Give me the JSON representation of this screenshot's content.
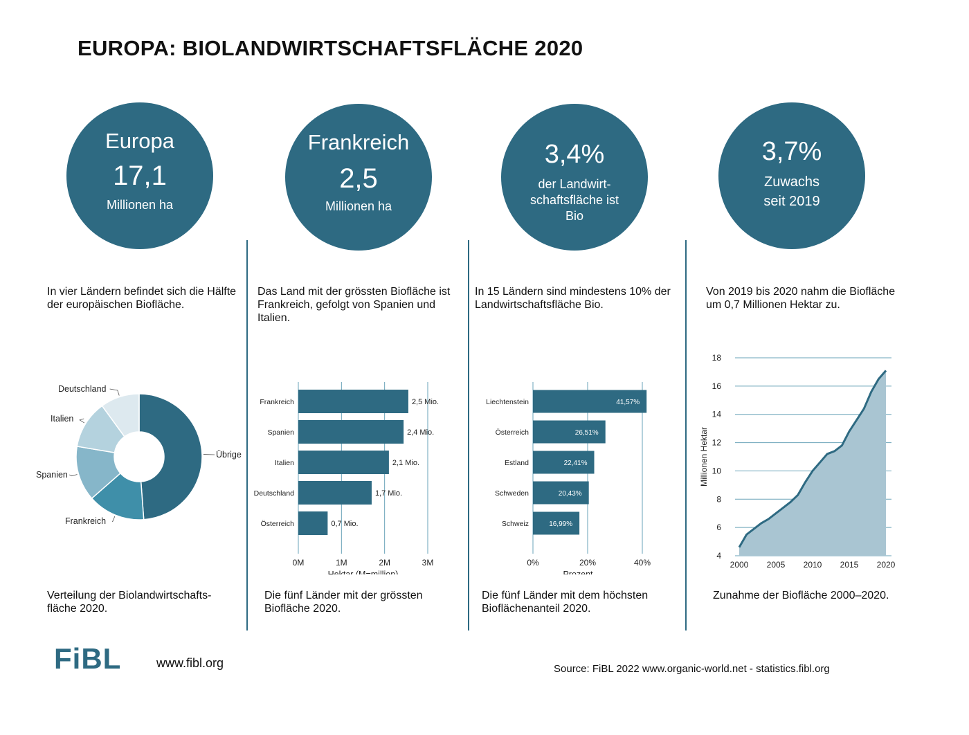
{
  "title": "EUROPA: BIOLANDWIRTSCHAFTSFLÄCHE 2020",
  "colors": {
    "primary": "#2e6a82",
    "mid": "#3f8fa9",
    "light1": "#86b6c9",
    "light2": "#b4d2de",
    "light3": "#dde9ef",
    "area": "#a9c5d2"
  },
  "circles": [
    {
      "line1": "Europa",
      "line2": "17,1",
      "line3": "Millionen ha"
    },
    {
      "line1": "Frankreich",
      "line2": "2,5",
      "line3": "Millionen ha"
    },
    {
      "line1": "3,4%",
      "line2": "der Landwirt-",
      "line3": "schaftsfläche ist",
      "line4": "Bio"
    },
    {
      "line1": "3,7%",
      "line2": "Zuwachs",
      "line3": "seit 2019"
    }
  ],
  "descriptions": [
    "In vier Ländern befindet sich die Hälfte der europäischen Biofläche.",
    "Das Land mit der grössten Biofläche ist Frankreich, gefolgt von Spanien und Italien.",
    "In 15 Ländern sind mindestens 10% der Landwirtschaftsfläche Bio.",
    "Von 2019 bis 2020 nahm die Biofläche um 0,7 Millionen Hektar zu."
  ],
  "captions": [
    "Verteilung der Biolandwirtschafts-fläche 2020.",
    "Die fünf Länder mit der grössten Biofläche 2020.",
    "Die fünf Länder mit dem höchsten Bioflächenanteil 2020.",
    "Zunahme der Biofläche 2000–2020."
  ],
  "footer": {
    "logo": "FiBL",
    "url": "www.fibl.org",
    "source": "Source: FiBL 2022 www.organic-world.net - statistics.fibl.org"
  },
  "chart_data": [
    {
      "type": "pie",
      "donut": true,
      "categories": [
        "Übrige",
        "Frankreich",
        "Spanien",
        "Italien",
        "Deutschland"
      ],
      "values": [
        8.3,
        2.5,
        2.4,
        2.1,
        1.7
      ],
      "colors": [
        "#2e6a82",
        "#3f8fa9",
        "#86b6c9",
        "#b4d2de",
        "#dde9ef"
      ]
    },
    {
      "type": "bar",
      "orientation": "horizontal",
      "categories": [
        "Frankreich",
        "Spanien",
        "Italien",
        "Deutschland",
        "Österreich"
      ],
      "values": [
        2.55,
        2.44,
        2.1,
        1.7,
        0.68
      ],
      "data_labels": [
        "2,5 Mio.",
        "2,4 Mio.",
        "2,1 Mio.",
        "1,7 Mio.",
        "0,7 Mio."
      ],
      "xticks": [
        "0M",
        "1M",
        "2M",
        "3M"
      ],
      "xlim": [
        0,
        3
      ],
      "xlabel": "Hektar (M=million)",
      "grid": true
    },
    {
      "type": "bar",
      "orientation": "horizontal",
      "categories": [
        "Liechtenstein",
        "Österreich",
        "Estland",
        "Schweden",
        "Schweiz"
      ],
      "values": [
        41.57,
        26.51,
        22.41,
        20.43,
        16.99
      ],
      "data_labels": [
        "41,57%",
        "26,51%",
        "22,41%",
        "20,43%",
        "16,99%"
      ],
      "xticks": [
        "0%",
        "20%",
        "40%"
      ],
      "xlim": [
        0,
        40
      ],
      "xlabel": "Prozent",
      "grid": true
    },
    {
      "type": "area",
      "x": [
        2000,
        2001,
        2002,
        2003,
        2004,
        2005,
        2006,
        2007,
        2008,
        2009,
        2010,
        2011,
        2012,
        2013,
        2014,
        2015,
        2016,
        2017,
        2018,
        2019,
        2020
      ],
      "y": [
        4.6,
        5.5,
        5.9,
        6.3,
        6.6,
        7.0,
        7.4,
        7.8,
        8.3,
        9.2,
        10.0,
        10.6,
        11.2,
        11.4,
        11.8,
        12.8,
        13.6,
        14.4,
        15.6,
        16.5,
        17.1
      ],
      "xticks": [
        "2000",
        "2005",
        "2010",
        "2015",
        "2020"
      ],
      "yticks": [
        "4",
        "6",
        "8",
        "10",
        "12",
        "14",
        "16",
        "18"
      ],
      "ylim": [
        4,
        18
      ],
      "ylabel": "Millionen Hektar",
      "grid": true
    }
  ]
}
